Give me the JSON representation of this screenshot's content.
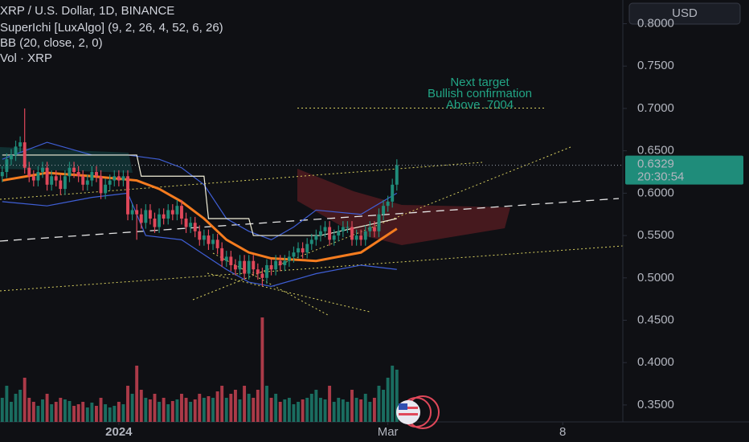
{
  "chart_data": {
    "type": "candlestick",
    "title": "XRP / U.S. Dollar, 1D, BINANCE",
    "indicator_labels": [
      "SuperIchi [LuxAlgo] (9, 2, 26, 4, 52, 6, 26)",
      "BB (20, close, 2, 0)",
      "Vol · XRP"
    ],
    "currency": "USD",
    "price_label": {
      "value": 0.6329,
      "label": "0.6329"
    },
    "countdown": "20:30:54",
    "annotation": [
      "Next target",
      "Bullish confirmation",
      "Above .7004"
    ],
    "target_level": 0.7004,
    "up_color": "#1f8c7a",
    "down_color": "#e0485a",
    "xlim": [
      -0.5,
      138.4
    ],
    "xticks": [
      {
        "value": 26,
        "label": "2024"
      },
      {
        "value": 86,
        "label": "Mar"
      },
      {
        "value": 125,
        "label": "8"
      }
    ],
    "ylim": [
      0.33,
      0.828
    ],
    "yticks": [
      {
        "value": 0.35,
        "label": "0.3500"
      },
      {
        "value": 0.4,
        "label": "0.4000"
      },
      {
        "value": 0.45,
        "label": "0.4500"
      },
      {
        "value": 0.5,
        "label": "0.5000"
      },
      {
        "value": 0.55,
        "label": "0.5500"
      },
      {
        "value": 0.6,
        "label": "0.6000"
      },
      {
        "value": 0.65,
        "label": "0.6500"
      },
      {
        "value": 0.7,
        "label": "0.7000"
      },
      {
        "value": 0.75,
        "label": "0.7500"
      },
      {
        "value": 0.8,
        "label": "0.8000"
      }
    ],
    "open": [
      0.62,
      0.625,
      0.64,
      0.645,
      0.655,
      0.66,
      0.63,
      0.62,
      0.615,
      0.625,
      0.63,
      0.61,
      0.62,
      0.615,
      0.605,
      0.62,
      0.63,
      0.625,
      0.62,
      0.61,
      0.615,
      0.625,
      0.62,
      0.6,
      0.61,
      0.615,
      0.62,
      0.615,
      0.62,
      0.575,
      0.58,
      0.575,
      0.565,
      0.58,
      0.57,
      0.56,
      0.575,
      0.57,
      0.58,
      0.575,
      0.585,
      0.57,
      0.56,
      0.565,
      0.555,
      0.545,
      0.55,
      0.54,
      0.545,
      0.535,
      0.52,
      0.525,
      0.515,
      0.51,
      0.52,
      0.505,
      0.52,
      0.51,
      0.505,
      0.5,
      0.515,
      0.51,
      0.52,
      0.515,
      0.52,
      0.525,
      0.53,
      0.535,
      0.53,
      0.54,
      0.545,
      0.55,
      0.555,
      0.56,
      0.545,
      0.55,
      0.555,
      0.56,
      0.56,
      0.545,
      0.55,
      0.545,
      0.555,
      0.56,
      0.555,
      0.575,
      0.585,
      0.59,
      0.61
    ],
    "high": [
      0.632,
      0.647,
      0.652,
      0.662,
      0.667,
      0.7,
      0.637,
      0.627,
      0.632,
      0.637,
      0.637,
      0.627,
      0.627,
      0.622,
      0.627,
      0.637,
      0.637,
      0.632,
      0.627,
      0.622,
      0.632,
      0.632,
      0.627,
      0.617,
      0.622,
      0.627,
      0.627,
      0.627,
      0.627,
      0.587,
      0.587,
      0.582,
      0.587,
      0.587,
      0.577,
      0.582,
      0.582,
      0.587,
      0.587,
      0.592,
      0.592,
      0.577,
      0.572,
      0.572,
      0.562,
      0.557,
      0.557,
      0.552,
      0.552,
      0.542,
      0.532,
      0.532,
      0.522,
      0.527,
      0.527,
      0.527,
      0.527,
      0.517,
      0.512,
      0.522,
      0.522,
      0.527,
      0.527,
      0.527,
      0.532,
      0.537,
      0.542,
      0.542,
      0.547,
      0.552,
      0.557,
      0.562,
      0.567,
      0.567,
      0.557,
      0.562,
      0.567,
      0.567,
      0.567,
      0.557,
      0.557,
      0.562,
      0.567,
      0.567,
      0.582,
      0.592,
      0.597,
      0.617,
      0.64
    ],
    "low": [
      0.613,
      0.618,
      0.633,
      0.638,
      0.648,
      0.623,
      0.613,
      0.608,
      0.608,
      0.618,
      0.603,
      0.603,
      0.608,
      0.598,
      0.598,
      0.613,
      0.618,
      0.613,
      0.603,
      0.603,
      0.608,
      0.613,
      0.593,
      0.593,
      0.603,
      0.608,
      0.608,
      0.608,
      0.568,
      0.568,
      0.545,
      0.558,
      0.558,
      0.563,
      0.553,
      0.553,
      0.563,
      0.563,
      0.568,
      0.568,
      0.563,
      0.553,
      0.553,
      0.548,
      0.538,
      0.538,
      0.533,
      0.533,
      0.528,
      0.513,
      0.513,
      0.508,
      0.503,
      0.503,
      0.498,
      0.498,
      0.503,
      0.498,
      0.49,
      0.493,
      0.503,
      0.503,
      0.508,
      0.508,
      0.513,
      0.518,
      0.523,
      0.523,
      0.523,
      0.533,
      0.538,
      0.543,
      0.548,
      0.538,
      0.538,
      0.543,
      0.548,
      0.553,
      0.538,
      0.538,
      0.538,
      0.538,
      0.548,
      0.548,
      0.548,
      0.568,
      0.578,
      0.583,
      0.603
    ],
    "close": [
      0.625,
      0.64,
      0.645,
      0.655,
      0.66,
      0.63,
      0.62,
      0.615,
      0.625,
      0.63,
      0.61,
      0.62,
      0.615,
      0.605,
      0.62,
      0.63,
      0.625,
      0.62,
      0.61,
      0.615,
      0.625,
      0.62,
      0.6,
      0.61,
      0.615,
      0.62,
      0.615,
      0.62,
      0.575,
      0.58,
      0.575,
      0.565,
      0.58,
      0.57,
      0.56,
      0.575,
      0.57,
      0.58,
      0.575,
      0.585,
      0.57,
      0.56,
      0.565,
      0.555,
      0.545,
      0.55,
      0.54,
      0.545,
      0.535,
      0.52,
      0.525,
      0.515,
      0.51,
      0.52,
      0.505,
      0.52,
      0.51,
      0.505,
      0.5,
      0.515,
      0.51,
      0.52,
      0.515,
      0.52,
      0.525,
      0.53,
      0.535,
      0.53,
      0.54,
      0.545,
      0.55,
      0.555,
      0.56,
      0.545,
      0.55,
      0.555,
      0.56,
      0.56,
      0.545,
      0.55,
      0.545,
      0.555,
      0.56,
      0.555,
      0.575,
      0.585,
      0.59,
      0.61,
      0.633
    ],
    "volume": [
      30,
      45,
      25,
      35,
      40,
      55,
      30,
      25,
      20,
      28,
      35,
      22,
      25,
      30,
      28,
      26,
      20,
      22,
      25,
      18,
      24,
      20,
      30,
      22,
      18,
      20,
      25,
      22,
      45,
      35,
      70,
      40,
      30,
      28,
      35,
      25,
      30,
      22,
      26,
      28,
      35,
      30,
      25,
      28,
      35,
      30,
      32,
      30,
      38,
      45,
      30,
      35,
      40,
      28,
      45,
      35,
      30,
      40,
      130,
      45,
      30,
      35,
      25,
      28,
      30,
      22,
      25,
      28,
      30,
      35,
      40,
      30,
      28,
      45,
      25,
      30,
      28,
      25,
      40,
      30,
      28,
      35,
      25,
      30,
      45,
      40,
      55,
      70,
      65
    ],
    "volume_lim": [
      0,
      135
    ],
    "series": [
      {
        "color": "#f57c1f",
        "x": [
          0,
          10,
          20,
          30,
          35,
          40,
          45,
          50,
          55,
          60,
          70,
          80,
          88
        ],
        "values": [
          0.615,
          0.624,
          0.62,
          0.615,
          0.605,
          0.59,
          0.57,
          0.545,
          0.53,
          0.523,
          0.52,
          0.53,
          0.558
        ]
      },
      {
        "color": "#3f5fd6",
        "x": [
          0,
          10,
          20,
          28,
          35,
          40,
          45,
          50,
          55,
          60,
          65,
          70,
          80,
          88
        ],
        "values": [
          0.64,
          0.66,
          0.645,
          0.645,
          0.64,
          0.63,
          0.61,
          0.57,
          0.555,
          0.545,
          0.56,
          0.58,
          0.575,
          0.6
        ]
      },
      {
        "color": "#3f5fd6",
        "x": [
          0,
          10,
          20,
          28,
          32,
          40,
          50,
          55,
          60,
          70,
          80,
          88
        ],
        "values": [
          0.59,
          0.585,
          0.595,
          0.6,
          0.55,
          0.545,
          0.51,
          0.495,
          0.49,
          0.505,
          0.515,
          0.51
        ]
      },
      {
        "color": "#f2efd9",
        "x": [
          0,
          30,
          31,
          45,
          46,
          55,
          56,
          70,
          71,
          88
        ],
        "values": [
          0.645,
          0.645,
          0.62,
          0.62,
          0.57,
          0.57,
          0.55,
          0.55,
          0.55,
          0.57
        ]
      }
    ]
  }
}
